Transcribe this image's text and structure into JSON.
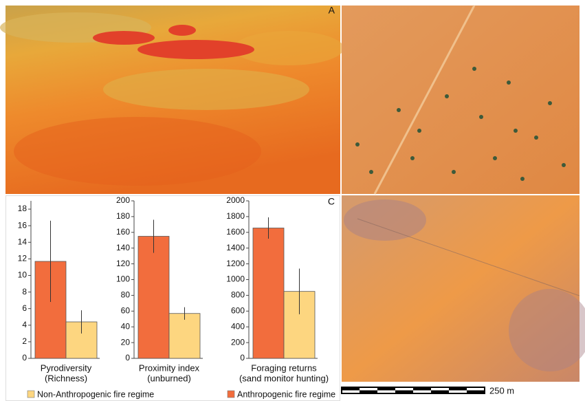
{
  "panel_labels": [
    "A",
    "C"
  ],
  "scale_bar": "250 m",
  "legend": [
    {
      "name": "Non-Anthropogenic fire regime",
      "color": "#fdd680"
    },
    {
      "name": "Anthropogenic fire regime",
      "color": "#f26d3d"
    }
  ],
  "chart_data": [
    {
      "type": "bar",
      "xlabel": [
        "Pyrodiversity",
        "(Richness)"
      ],
      "values": [
        11.7,
        4.4
      ],
      "errors": [
        4.9,
        1.4
      ],
      "colors": [
        "#f26d3d",
        "#fdd680"
      ],
      "ylim": [
        0,
        19
      ],
      "yticks": [
        0,
        2,
        4,
        6,
        8,
        10,
        12,
        14,
        16,
        18
      ]
    },
    {
      "type": "bar",
      "xlabel": [
        "Proximity index",
        "(unburned)"
      ],
      "values": [
        155,
        57
      ],
      "errors": [
        21,
        8
      ],
      "colors": [
        "#f26d3d",
        "#fdd680"
      ],
      "ylim": [
        0,
        200
      ],
      "yticks": [
        0,
        20,
        40,
        60,
        80,
        100,
        120,
        140,
        160,
        180,
        200
      ]
    },
    {
      "type": "bar",
      "xlabel": [
        "Foraging returns",
        "(sand monitor hunting)"
      ],
      "values": [
        1655,
        850
      ],
      "errors": [
        135,
        290
      ],
      "colors": [
        "#f26d3d",
        "#fdd680"
      ],
      "ylim": [
        0,
        2000
      ],
      "yticks": [
        0,
        200,
        400,
        600,
        800,
        1000,
        1200,
        1400,
        1600,
        1800,
        2000
      ]
    }
  ]
}
